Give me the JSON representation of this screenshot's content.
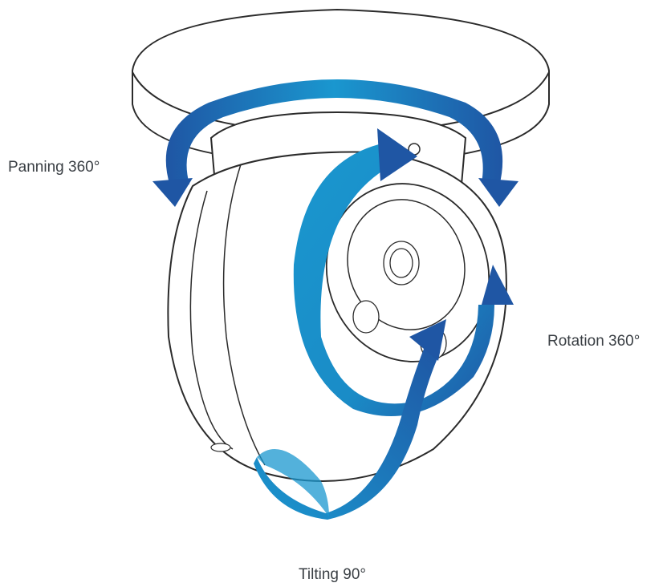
{
  "labels": {
    "panning": "Panning 360°",
    "rotation": "Rotation 360°",
    "tilting": "Tilting 90°"
  },
  "colors": {
    "arrow_dark": "#1f56a4",
    "arrow_light": "#1a97cf",
    "outline": "#2b2b2b",
    "body": "#ffffff"
  },
  "icons": {
    "camera": "dome-camera-icon",
    "pan_arrow": "curved-double-arrow-icon",
    "rotation_arrow": "circular-arrow-icon",
    "tilt_arrow": "twisted-arrow-icon"
  }
}
